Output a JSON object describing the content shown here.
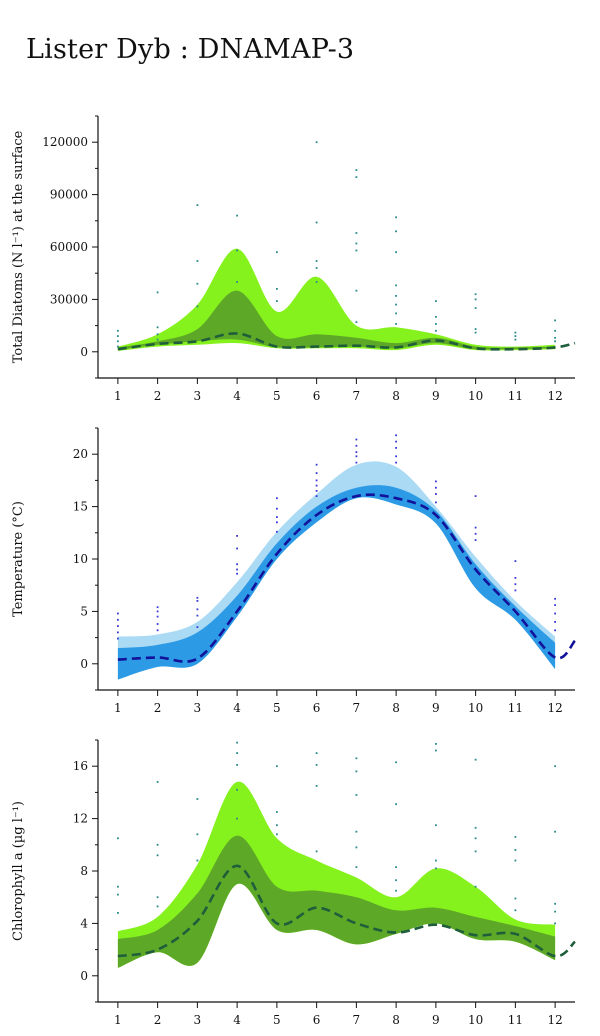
{
  "title": "Lister Dyb : DNAMAP-3",
  "chart_data": [
    {
      "type": "area",
      "ylabel": "Total Diatoms (N l⁻¹) at the surface",
      "x_ticks": [
        1,
        2,
        3,
        4,
        5,
        6,
        7,
        8,
        9,
        10,
        11,
        12
      ],
      "y_ticks": [
        0,
        30000,
        60000,
        90000,
        120000
      ],
      "y_tick_labels": [
        "0",
        "30000",
        "60000",
        "90000",
        "120000"
      ],
      "ylim": [
        -15000,
        135000
      ],
      "xlim": [
        0.5,
        12.5
      ],
      "grid": false,
      "colors": {
        "outer_band": "#86f21d",
        "inner_band": "#5ea828",
        "mean_line": "#1e5e3a",
        "points": "#2a8a8a"
      },
      "outer_band": {
        "x": [
          1,
          2,
          3,
          4,
          5,
          6,
          7,
          8,
          9,
          10,
          11,
          12
        ],
        "upper": [
          3000,
          10000,
          27000,
          59000,
          23000,
          43000,
          15000,
          14000,
          10000,
          4000,
          3000,
          4000
        ],
        "lower": [
          500,
          3000,
          4000,
          5000,
          2000,
          2000,
          2000,
          1000,
          4000,
          1000,
          1000,
          1500
        ]
      },
      "inner_band": {
        "x": [
          1,
          2,
          3,
          4,
          5,
          6,
          7,
          8,
          9,
          10,
          11,
          12
        ],
        "upper": [
          2500,
          6000,
          13000,
          35000,
          9000,
          10000,
          8000,
          5000,
          8000,
          3000,
          2500,
          3000
        ],
        "lower": [
          1000,
          4000,
          6000,
          7000,
          2500,
          2500,
          3000,
          2000,
          5000,
          1500,
          1500,
          2000
        ]
      },
      "mean_line": {
        "x": [
          1,
          2,
          3,
          4,
          5,
          6,
          7,
          8,
          9,
          10,
          11,
          12,
          12.5
        ],
        "y": [
          1500,
          4500,
          6000,
          10500,
          3000,
          3000,
          3500,
          2500,
          6500,
          2000,
          1500,
          2500,
          5000
        ]
      },
      "points": [
        [
          1,
          12000
        ],
        [
          1,
          9000
        ],
        [
          1,
          6000
        ],
        [
          1,
          3000
        ],
        [
          2,
          34000
        ],
        [
          2,
          14000
        ],
        [
          2,
          10000
        ],
        [
          2,
          7000
        ],
        [
          3,
          84000
        ],
        [
          3,
          52000
        ],
        [
          3,
          39000
        ],
        [
          3,
          26000
        ],
        [
          4,
          78000
        ],
        [
          4,
          58000
        ],
        [
          4,
          40000
        ],
        [
          5,
          57000
        ],
        [
          5,
          36000
        ],
        [
          5,
          29000
        ],
        [
          6,
          120000
        ],
        [
          6,
          74000
        ],
        [
          6,
          52000
        ],
        [
          6,
          48000
        ],
        [
          6,
          40000
        ],
        [
          7,
          104000
        ],
        [
          7,
          100000
        ],
        [
          7,
          68000
        ],
        [
          7,
          62000
        ],
        [
          7,
          58000
        ],
        [
          7,
          35000
        ],
        [
          7,
          17000
        ],
        [
          8,
          77000
        ],
        [
          8,
          69000
        ],
        [
          8,
          57000
        ],
        [
          8,
          38000
        ],
        [
          8,
          32000
        ],
        [
          8,
          27000
        ],
        [
          8,
          22000
        ],
        [
          8,
          16000
        ],
        [
          9,
          29000
        ],
        [
          9,
          20000
        ],
        [
          9,
          16000
        ],
        [
          9,
          12000
        ],
        [
          10,
          33000
        ],
        [
          10,
          30000
        ],
        [
          10,
          25000
        ],
        [
          10,
          13000
        ],
        [
          10,
          11000
        ],
        [
          11,
          11000
        ],
        [
          11,
          9000
        ],
        [
          11,
          7000
        ],
        [
          12,
          18000
        ],
        [
          12,
          12000
        ],
        [
          12,
          8000
        ],
        [
          12,
          6000
        ]
      ]
    },
    {
      "type": "area",
      "ylabel": "Temperature (°C)",
      "x_ticks": [
        1,
        2,
        3,
        4,
        5,
        6,
        7,
        8,
        9,
        10,
        11,
        12
      ],
      "y_ticks": [
        0,
        5,
        10,
        15,
        20
      ],
      "y_tick_labels": [
        "0",
        "5",
        "10",
        "15",
        "20"
      ],
      "ylim": [
        -2.5,
        22.5
      ],
      "xlim": [
        0.5,
        12.5
      ],
      "grid": false,
      "colors": {
        "outer_band": "#aadaf4",
        "inner_band": "#2d9ae6",
        "mean_line": "#12129a",
        "points": "#3a3ad4"
      },
      "outer_band": {
        "x": [
          1,
          2,
          3,
          4,
          5,
          6,
          7,
          8,
          9,
          10,
          11,
          12
        ],
        "upper": [
          2.6,
          2.8,
          4.0,
          7.8,
          12.6,
          16.2,
          19.0,
          18.8,
          15.0,
          10.2,
          6.0,
          2.6
        ],
        "lower": [
          -1.5,
          -0.3,
          0.0,
          4.5,
          10.0,
          13.5,
          15.8,
          15.2,
          13.4,
          7.2,
          4.2,
          -0.5
        ]
      },
      "inner_band": {
        "x": [
          1,
          2,
          3,
          4,
          5,
          6,
          7,
          8,
          9,
          10,
          11,
          12
        ],
        "upper": [
          1.5,
          1.8,
          3.0,
          6.5,
          11.5,
          15.0,
          16.8,
          16.8,
          14.6,
          9.5,
          5.5,
          2.0
        ],
        "lower": [
          -1.5,
          -0.3,
          0.0,
          4.5,
          10.0,
          13.5,
          15.8,
          15.2,
          13.4,
          7.2,
          4.2,
          -0.5
        ]
      },
      "mean_line": {
        "x": [
          1,
          2,
          3,
          4,
          5,
          6,
          7,
          8,
          9,
          10,
          11,
          12,
          12.5
        ],
        "y": [
          0.4,
          0.6,
          0.5,
          5.0,
          10.5,
          14.2,
          16.0,
          15.8,
          14.2,
          9.0,
          5.0,
          0.6,
          2.2
        ]
      },
      "points": [
        [
          1,
          4.8
        ],
        [
          1,
          4.2
        ],
        [
          1,
          3.6
        ],
        [
          1,
          3.0
        ],
        [
          1,
          2.4
        ],
        [
          2,
          5.4
        ],
        [
          2,
          5.0
        ],
        [
          2,
          4.5
        ],
        [
          2,
          3.8
        ],
        [
          2,
          3.2
        ],
        [
          3,
          6.3
        ],
        [
          3,
          6.0
        ],
        [
          3,
          5.2
        ],
        [
          3,
          4.6
        ],
        [
          3,
          3.5
        ],
        [
          4,
          12.2
        ],
        [
          4,
          11.0
        ],
        [
          4,
          9.5
        ],
        [
          4,
          9.0
        ],
        [
          4,
          8.6
        ],
        [
          5,
          15.8
        ],
        [
          5,
          14.8
        ],
        [
          5,
          14.0
        ],
        [
          5,
          13.5
        ],
        [
          5,
          12.6
        ],
        [
          6,
          19.0
        ],
        [
          6,
          18.2
        ],
        [
          6,
          17.5
        ],
        [
          6,
          17.0
        ],
        [
          6,
          16.5
        ],
        [
          6,
          16.0
        ],
        [
          7,
          21.4
        ],
        [
          7,
          20.8
        ],
        [
          7,
          20.2
        ],
        [
          7,
          19.8
        ],
        [
          7,
          19.2
        ],
        [
          8,
          21.8
        ],
        [
          8,
          21.2
        ],
        [
          8,
          20.6
        ],
        [
          8,
          19.8
        ],
        [
          8,
          19.2
        ],
        [
          9,
          17.4
        ],
        [
          9,
          16.8
        ],
        [
          9,
          16.2
        ],
        [
          9,
          15.4
        ],
        [
          10,
          16.0
        ],
        [
          10,
          13.0
        ],
        [
          10,
          12.4
        ],
        [
          10,
          11.8
        ],
        [
          11,
          9.8
        ],
        [
          11,
          8.2
        ],
        [
          11,
          7.6
        ],
        [
          11,
          7.0
        ],
        [
          12,
          6.2
        ],
        [
          12,
          5.6
        ],
        [
          12,
          4.8
        ],
        [
          12,
          4.0
        ],
        [
          12,
          3.2
        ]
      ]
    },
    {
      "type": "area",
      "ylabel": "Chlorophyll a (µg l⁻¹)",
      "x_ticks": [
        1,
        2,
        3,
        4,
        5,
        6,
        7,
        8,
        9,
        10,
        11,
        12
      ],
      "y_ticks": [
        0,
        4,
        8,
        12,
        16
      ],
      "y_tick_labels": [
        "0",
        "4",
        "8",
        "12",
        "16"
      ],
      "ylim": [
        -2,
        18
      ],
      "xlim": [
        0.5,
        12.5
      ],
      "grid": false,
      "colors": {
        "outer_band": "#86f21d",
        "inner_band": "#5ea828",
        "mean_line": "#1e5e3a",
        "points": "#2a8a8a"
      },
      "outer_band": {
        "x": [
          1,
          2,
          3,
          4,
          5,
          6,
          7,
          8,
          9,
          10,
          11,
          12
        ],
        "upper": [
          3.4,
          4.5,
          8.5,
          14.8,
          10.5,
          8.8,
          7.5,
          6.0,
          8.2,
          6.8,
          4.3,
          3.9
        ],
        "lower": [
          0.6,
          1.8,
          1.0,
          7.0,
          3.5,
          3.5,
          2.4,
          3.2,
          4.0,
          2.8,
          2.6,
          1.2
        ]
      },
      "inner_band": {
        "x": [
          1,
          2,
          3,
          4,
          5,
          6,
          7,
          8,
          9,
          10,
          11,
          12
        ],
        "upper": [
          2.8,
          3.5,
          6.3,
          10.7,
          6.8,
          6.5,
          6.0,
          5.0,
          5.2,
          4.5,
          3.8,
          3.0
        ],
        "lower": [
          0.6,
          1.8,
          1.0,
          7.0,
          3.5,
          3.5,
          2.4,
          3.2,
          4.0,
          2.8,
          2.6,
          1.2
        ]
      },
      "mean_line": {
        "x": [
          1,
          2,
          3,
          4,
          5,
          6,
          7,
          8,
          9,
          10,
          11,
          12,
          12.5
        ],
        "y": [
          1.5,
          2.0,
          4.2,
          8.4,
          4.0,
          5.2,
          4.0,
          3.3,
          3.9,
          3.1,
          3.2,
          1.5,
          2.6
        ]
      },
      "points": [
        [
          1,
          10.5
        ],
        [
          1,
          6.8
        ],
        [
          1,
          6.2
        ],
        [
          1,
          4.8
        ],
        [
          2,
          14.8
        ],
        [
          2,
          10.0
        ],
        [
          2,
          9.2
        ],
        [
          2,
          6.0
        ],
        [
          2,
          5.3
        ],
        [
          3,
          13.5
        ],
        [
          3,
          10.8
        ],
        [
          3,
          8.8
        ],
        [
          4,
          17.8
        ],
        [
          4,
          17.0
        ],
        [
          4,
          16.1
        ],
        [
          4,
          14.2
        ],
        [
          4,
          12.0
        ],
        [
          5,
          16.0
        ],
        [
          5,
          12.5
        ],
        [
          5,
          11.5
        ],
        [
          5,
          10.8
        ],
        [
          6,
          17.0
        ],
        [
          6,
          16.1
        ],
        [
          6,
          14.5
        ],
        [
          6,
          9.5
        ],
        [
          7,
          16.6
        ],
        [
          7,
          15.6
        ],
        [
          7,
          13.8
        ],
        [
          7,
          11.0
        ],
        [
          7,
          9.8
        ],
        [
          7,
          8.3
        ],
        [
          8,
          16.3
        ],
        [
          8,
          13.1
        ],
        [
          8,
          8.3
        ],
        [
          8,
          7.3
        ],
        [
          8,
          6.5
        ],
        [
          9,
          17.7
        ],
        [
          9,
          17.2
        ],
        [
          9,
          11.5
        ],
        [
          9,
          8.8
        ],
        [
          9,
          8.2
        ],
        [
          10,
          16.5
        ],
        [
          10,
          11.3
        ],
        [
          10,
          10.5
        ],
        [
          10,
          9.5
        ],
        [
          10,
          6.8
        ],
        [
          11,
          10.6
        ],
        [
          11,
          9.6
        ],
        [
          11,
          8.8
        ],
        [
          11,
          5.9
        ],
        [
          11,
          5.0
        ],
        [
          12,
          16.0
        ],
        [
          12,
          11.0
        ],
        [
          12,
          5.5
        ],
        [
          12,
          4.9
        ],
        [
          12,
          4.0
        ]
      ]
    }
  ]
}
